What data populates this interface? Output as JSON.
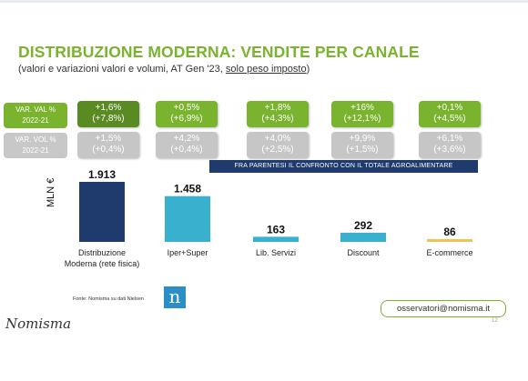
{
  "header": {
    "title": "DISTRIBUZIONE MODERNA: VENDITE PER CANALE",
    "subtitle_main": "(valori e variazioni valori e volumi, AT Gen '23, ",
    "subtitle_underlined": "solo peso imposto",
    "subtitle_end": ")"
  },
  "labels": {
    "val_l1": "VAR. VAL %",
    "val_l2": "2022-21",
    "vol_l1": "VAR. VOL %",
    "vol_l2": "2022-21"
  },
  "variations": [
    {
      "val": "+1,6%",
      "val_total": "(+7,8%)",
      "vol": "+1,5%",
      "vol_total": "(+0,4%)"
    },
    {
      "val": "+0,5%",
      "val_total": "(+6,9%)",
      "vol": "+4,2%",
      "vol_total": "(+0,4%)"
    },
    {
      "val": "+1,8%",
      "val_total": "(+4,3%)",
      "vol": "+4,0%",
      "vol_total": "(+2,5%)"
    },
    {
      "val": "+16%",
      "val_total": "(+12,1%)",
      "vol": "+9,9%",
      "vol_total": "(+1,5%)"
    },
    {
      "val": "+0,1%",
      "val_total": "(+4,5%)",
      "vol": "+6,1%",
      "vol_total": "(+3,6%)"
    }
  ],
  "note": "FRA PARENTESI IL CONFRONTO CON IL TOTALE AGROALIMENTARE",
  "chart_data": {
    "type": "bar",
    "ylabel": "MLN €",
    "categories": [
      "Distribuzione Moderna (rete fisica)",
      "Iper+Super",
      "Lib. Servizi",
      "Discount",
      "E-commerce"
    ],
    "category_lines": [
      [
        "Distribuzione",
        "Moderna (rete fisica)"
      ],
      [
        "Iper+Super"
      ],
      [
        "Lib. Servizi"
      ],
      [
        "Discount"
      ],
      [
        "E-commerce"
      ]
    ],
    "values": [
      1913,
      1458,
      163,
      292,
      86
    ],
    "value_labels": [
      "1.913",
      "1.458",
      "163",
      "292",
      "86"
    ],
    "colors": [
      "#1f3b6e",
      "#3ab0cf",
      "#3ab0cf",
      "#3ab0cf",
      "#f2c14e"
    ]
  },
  "footer": {
    "source": "Fonte: Nomisma su dati Nielsen",
    "icon_letter": "n",
    "email": "osservatori@nomisma.it",
    "page": "12",
    "logo": "Nomisma"
  }
}
